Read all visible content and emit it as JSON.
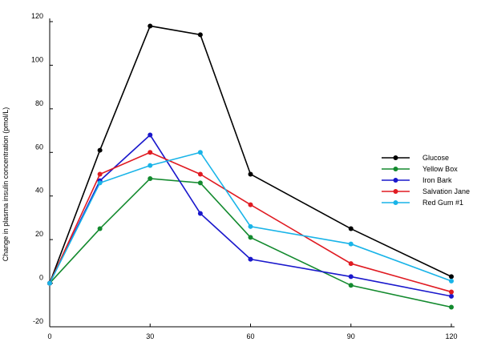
{
  "chart_data": {
    "type": "line",
    "title": "",
    "xlabel": "",
    "ylabel": "Change in plasma insulin concentration (pmol/L)",
    "xlim": [
      0,
      120
    ],
    "ylim": [
      -20,
      120
    ],
    "xticks": [
      0,
      30,
      60,
      90,
      120
    ],
    "yticks": [
      -20,
      0,
      20,
      40,
      60,
      80,
      100,
      120
    ],
    "grid": false,
    "legend_position": "right",
    "x": [
      0,
      15,
      30,
      45,
      60,
      90,
      120
    ],
    "series": [
      {
        "name": "Glucose",
        "color": "#000000",
        "values": [
          0,
          61,
          118,
          114,
          50,
          25,
          3
        ]
      },
      {
        "name": "Yellow Box",
        "color": "#138a2e",
        "values": [
          0,
          25,
          48,
          46,
          21,
          -1,
          -11
        ]
      },
      {
        "name": "Iron Bark",
        "color": "#1a18cc",
        "values": [
          0,
          47,
          68,
          32,
          11,
          3,
          -6
        ]
      },
      {
        "name": "Salvation Jane",
        "color": "#e01b22",
        "values": [
          0,
          50,
          60,
          50,
          36,
          9,
          -4
        ]
      },
      {
        "name": "Red Gum #1",
        "color": "#19b4e8",
        "values": [
          0,
          46,
          54,
          60,
          26,
          18,
          1
        ]
      }
    ]
  }
}
